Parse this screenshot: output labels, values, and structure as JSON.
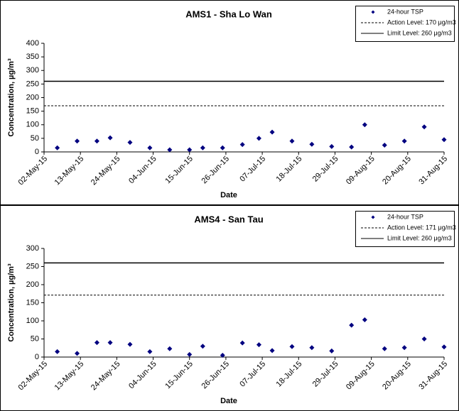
{
  "chart_data": [
    {
      "type": "scatter",
      "title": "AMS1 - Sha Lo Wan",
      "x_label": "Date",
      "y_label": "Concentration, µg/m³",
      "x": [
        "2015-05-06",
        "2015-05-12",
        "2015-05-18",
        "2015-05-22",
        "2015-05-28",
        "2015-06-03",
        "2015-06-09",
        "2015-06-15",
        "2015-06-19",
        "2015-06-25",
        "2015-07-01",
        "2015-07-06",
        "2015-07-10",
        "2015-07-16",
        "2015-07-22",
        "2015-07-28",
        "2015-08-03",
        "2015-08-07",
        "2015-08-13",
        "2015-08-19",
        "2015-08-25",
        "2015-08-31"
      ],
      "series": [
        {
          "name": "24-hour TSP",
          "color": "#000080",
          "values": [
            15,
            40,
            40,
            52,
            35,
            15,
            8,
            8,
            15,
            15,
            27,
            50,
            73,
            40,
            28,
            20,
            18,
            100,
            25,
            40,
            92,
            45
          ]
        }
      ],
      "levels": [
        {
          "name": "Action Level: 170 μg/m3",
          "value": 170,
          "style": "dashed"
        },
        {
          "name": "Limit Level: 260 μg/m3",
          "value": 260,
          "style": "solid"
        }
      ],
      "xlim": [
        "2015-05-02",
        "2015-08-31"
      ],
      "xticks": [
        {
          "value": "2015-05-02",
          "label": "02-May-15"
        },
        {
          "value": "2015-05-13",
          "label": "13-May-15"
        },
        {
          "value": "2015-05-24",
          "label": "24-May-15"
        },
        {
          "value": "2015-06-04",
          "label": "04-Jun-15"
        },
        {
          "value": "2015-06-15",
          "label": "15-Jun-15"
        },
        {
          "value": "2015-06-26",
          "label": "26-Jun-15"
        },
        {
          "value": "2015-07-07",
          "label": "07-Jul-15"
        },
        {
          "value": "2015-07-18",
          "label": "18-Jul-15"
        },
        {
          "value": "2015-07-29",
          "label": "29-Jul-15"
        },
        {
          "value": "2015-08-09",
          "label": "09-Aug-15"
        },
        {
          "value": "2015-08-20",
          "label": "20-Aug-15"
        },
        {
          "value": "2015-08-31",
          "label": "31-Aug-15"
        }
      ],
      "ylim": [
        0,
        400
      ],
      "yticks": [
        0,
        50,
        100,
        150,
        200,
        250,
        300,
        350,
        400
      ]
    },
    {
      "type": "scatter",
      "title": "AMS4 - San Tau",
      "x_label": "Date",
      "y_label": "Concentration, µg/m³",
      "x": [
        "2015-05-06",
        "2015-05-12",
        "2015-05-18",
        "2015-05-22",
        "2015-05-28",
        "2015-06-03",
        "2015-06-09",
        "2015-06-15",
        "2015-06-19",
        "2015-06-25",
        "2015-07-01",
        "2015-07-06",
        "2015-07-10",
        "2015-07-16",
        "2015-07-22",
        "2015-07-28",
        "2015-08-03",
        "2015-08-07",
        "2015-08-13",
        "2015-08-19",
        "2015-08-25",
        "2015-08-31"
      ],
      "series": [
        {
          "name": "24-hour TSP",
          "color": "#000080",
          "values": [
            15,
            10,
            40,
            40,
            35,
            15,
            23,
            7,
            30,
            5,
            39,
            34,
            18,
            29,
            26,
            17,
            88,
            103,
            23,
            26,
            50,
            28
          ]
        }
      ],
      "levels": [
        {
          "name": "Action Level: 171 μg/m3",
          "value": 171,
          "style": "dashed"
        },
        {
          "name": "Limit Level: 260 μg/m3",
          "value": 260,
          "style": "solid"
        }
      ],
      "xlim": [
        "2015-05-02",
        "2015-08-31"
      ],
      "xticks": [
        {
          "value": "2015-05-02",
          "label": "02-May-15"
        },
        {
          "value": "2015-05-13",
          "label": "13-May-15"
        },
        {
          "value": "2015-05-24",
          "label": "24-May-15"
        },
        {
          "value": "2015-06-04",
          "label": "04-Jun-15"
        },
        {
          "value": "2015-06-15",
          "label": "15-Jun-15"
        },
        {
          "value": "2015-06-26",
          "label": "26-Jun-15"
        },
        {
          "value": "2015-07-07",
          "label": "07-Jul-15"
        },
        {
          "value": "2015-07-18",
          "label": "18-Jul-15"
        },
        {
          "value": "2015-07-29",
          "label": "29-Jul-15"
        },
        {
          "value": "2015-08-09",
          "label": "09-Aug-15"
        },
        {
          "value": "2015-08-20",
          "label": "20-Aug-15"
        },
        {
          "value": "2015-08-31",
          "label": "31-Aug-15"
        }
      ],
      "ylim": [
        0,
        300
      ],
      "yticks": [
        0,
        50,
        100,
        150,
        200,
        250,
        300
      ]
    }
  ]
}
